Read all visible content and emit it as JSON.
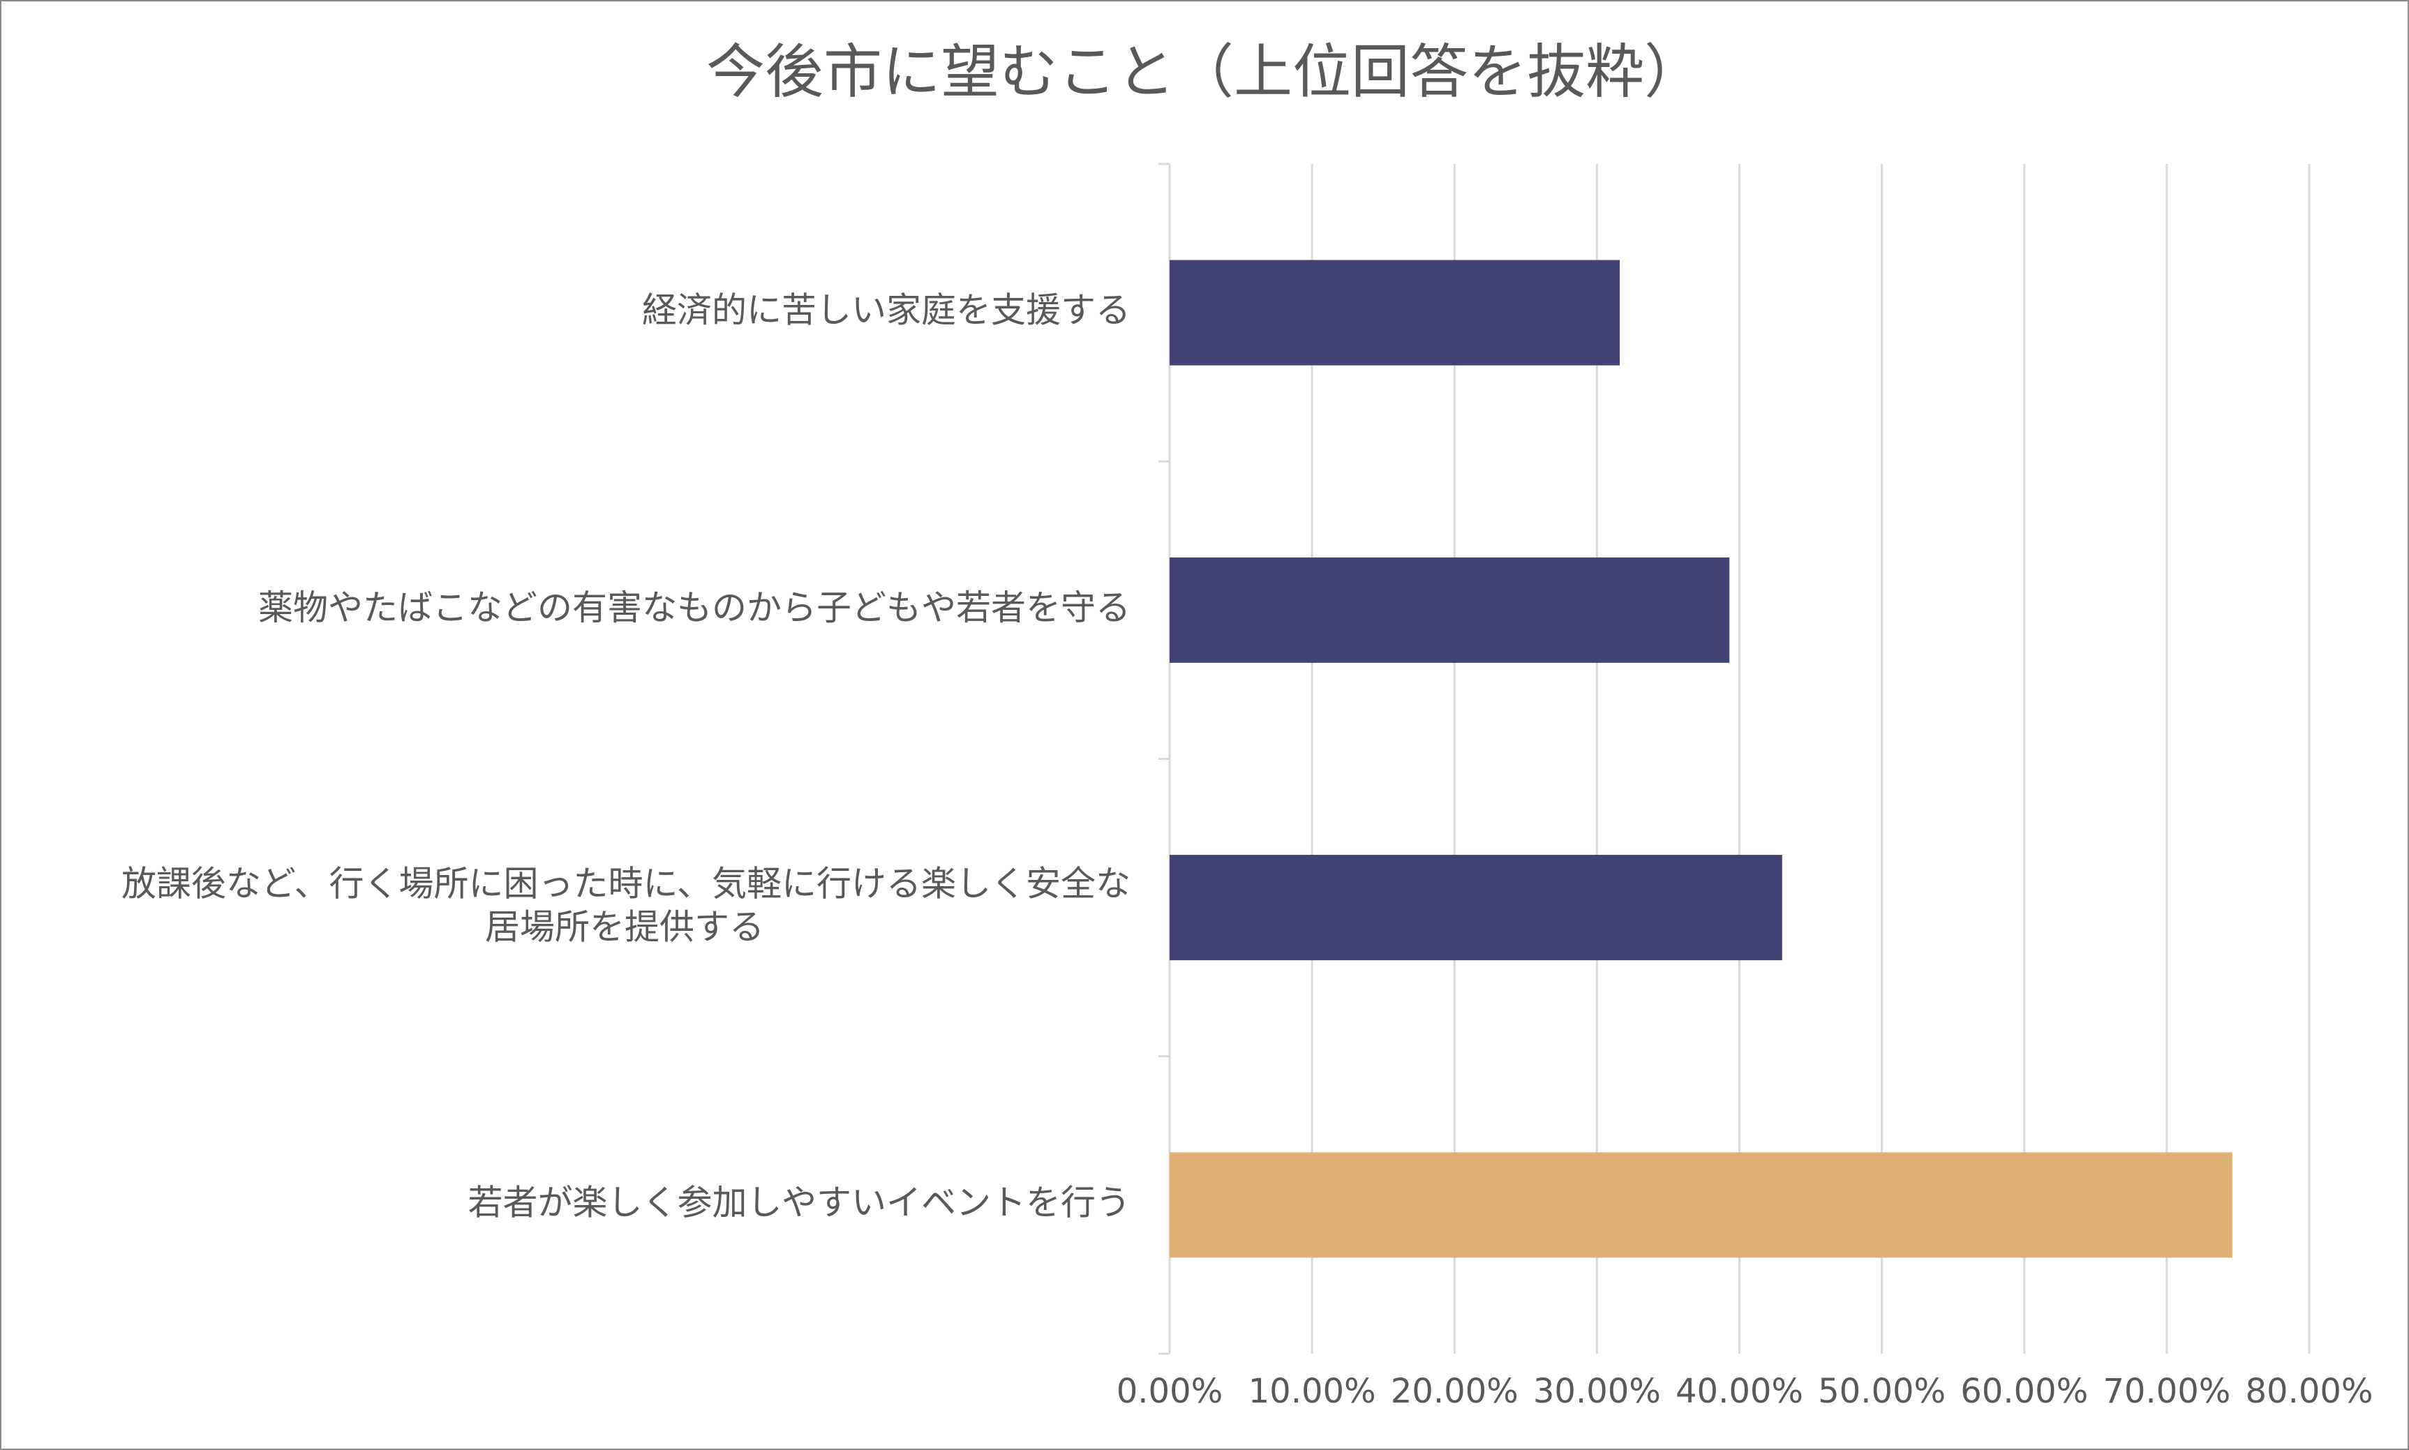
{
  "chart_data": {
    "type": "bar",
    "orientation": "horizontal",
    "title": "今後市に望むこと（上位回答を抜粋）",
    "categories": [
      "経済的に苦しい家庭を支援する",
      "薬物やたばこなどの有害なものから子どもや若者を守る",
      "放課後など、行く場所に困った時に、気軽に行ける楽しく安全な居場所を提供する",
      "若者が楽しく参加しやすいイベントを行う"
    ],
    "category_label_lines": [
      [
        "経済的に苦しい家庭を支援する"
      ],
      [
        "薬物やたばこなどの有害なものから子どもや若者を守る"
      ],
      [
        "放課後など、行く場所に困った時に、気軽に行ける楽しく安全な",
        "居場所を提供する"
      ],
      [
        "若者が楽しく参加しやすいイベントを行う"
      ]
    ],
    "values": [
      0.316,
      0.393,
      0.43,
      0.746
    ],
    "bar_colors": [
      "#424274",
      "#424274",
      "#424274",
      "#e0af73"
    ],
    "xlim": [
      0,
      0.8
    ],
    "x_ticks": [
      0,
      0.1,
      0.2,
      0.3,
      0.4,
      0.5,
      0.6,
      0.7,
      0.8
    ],
    "x_tick_labels": [
      "0.00%",
      "10.00%",
      "20.00%",
      "30.00%",
      "40.00%",
      "50.00%",
      "60.00%",
      "70.00%",
      "80.00%"
    ],
    "grid": true,
    "legend": "none",
    "xlabel": "",
    "ylabel": ""
  },
  "colors": {
    "text": "#595959",
    "grid": "#d9d9d9",
    "axis": "#d9d9d9",
    "border": "#8c8c8c",
    "bar_primary": "#424274",
    "bar_highlight": "#e0af73"
  }
}
